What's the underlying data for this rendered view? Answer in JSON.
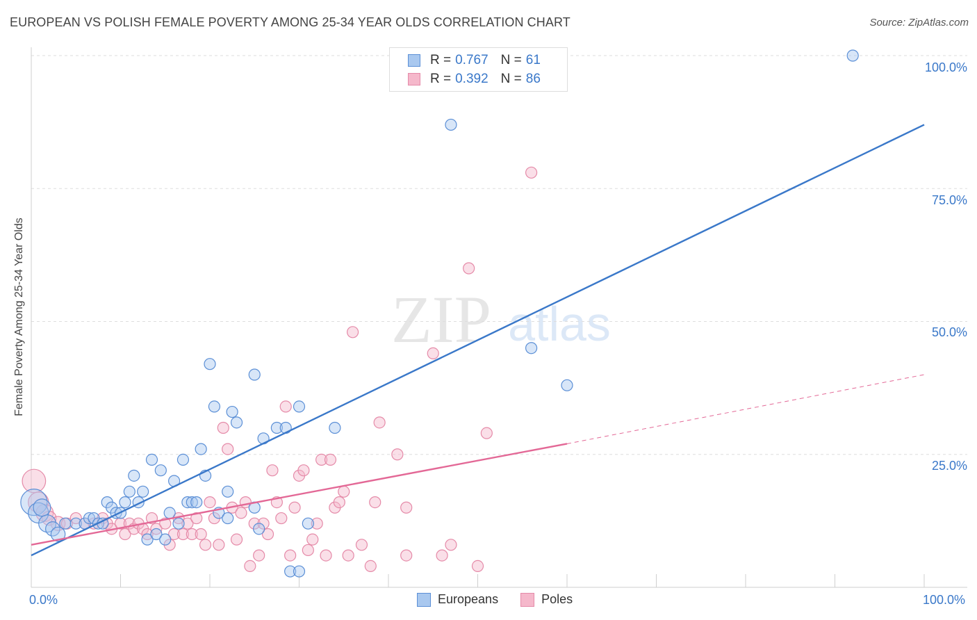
{
  "title": "EUROPEAN VS POLISH FEMALE POVERTY AMONG 25-34 YEAR OLDS CORRELATION CHART",
  "source": "Source: ZipAtlas.com",
  "watermark": {
    "zip": "ZIP",
    "atlas": "atlas"
  },
  "legend_top": {
    "rows": [
      {
        "r_label": "R =",
        "r_value": "0.767",
        "n_label": "N =",
        "n_value": "61"
      },
      {
        "r_label": "R =",
        "r_value": "0.392",
        "n_label": "N =",
        "n_value": "86"
      }
    ]
  },
  "colors": {
    "europeans_fill": "#a9c8ef",
    "europeans_stroke": "#5b8fd6",
    "europeans_line": "#3a78c9",
    "poles_fill": "#f5b8cb",
    "poles_stroke": "#e58aa8",
    "poles_line": "#e36896",
    "axis_text": "#3a78c9",
    "grid": "#dddddd"
  },
  "chart_data": {
    "type": "scatter",
    "ylabel": "Female Poverty Among 25-34 Year Olds",
    "xlim": [
      0,
      100
    ],
    "ylim": [
      0,
      100
    ],
    "x_tick_labels": [
      "0.0%",
      "100.0%"
    ],
    "y_tick_labels": [
      "25.0%",
      "50.0%",
      "75.0%",
      "100.0%"
    ],
    "y_ticks": [
      25,
      50,
      75,
      100
    ],
    "grid": "horizontal-dashed",
    "legend_placement": "top-center and bottom",
    "series": [
      {
        "name": "Europeans",
        "trend": {
          "x0": 0,
          "y0": 6,
          "x1": 100,
          "y1": 87,
          "dashed_after": null
        },
        "points": [
          [
            0.3,
            16,
            7
          ],
          [
            0.8,
            14,
            5
          ],
          [
            1.2,
            15,
            4
          ],
          [
            1.8,
            12,
            4
          ],
          [
            2.4,
            11,
            3
          ],
          [
            3.0,
            10,
            3
          ],
          [
            3.8,
            12,
            2
          ],
          [
            5,
            12,
            2
          ],
          [
            6,
            12,
            2
          ],
          [
            6.5,
            13,
            2
          ],
          [
            7,
            13,
            2
          ],
          [
            7.5,
            12,
            2
          ],
          [
            8,
            12,
            2
          ],
          [
            8.5,
            16,
            2
          ],
          [
            9,
            15,
            2
          ],
          [
            9.5,
            14,
            2
          ],
          [
            10,
            14,
            2
          ],
          [
            10.5,
            16,
            2
          ],
          [
            11,
            18,
            2
          ],
          [
            11.5,
            21,
            2
          ],
          [
            12,
            16,
            2
          ],
          [
            12.5,
            18,
            2
          ],
          [
            13,
            9,
            2
          ],
          [
            13.5,
            24,
            2
          ],
          [
            14,
            10,
            2
          ],
          [
            14.5,
            22,
            2
          ],
          [
            15,
            9,
            2
          ],
          [
            15.5,
            14,
            2
          ],
          [
            16,
            20,
            2
          ],
          [
            16.5,
            12,
            2
          ],
          [
            17,
            24,
            2
          ],
          [
            17.5,
            16,
            2
          ],
          [
            18,
            16,
            2
          ],
          [
            18.5,
            16,
            2
          ],
          [
            19,
            26,
            2
          ],
          [
            19.5,
            21,
            2
          ],
          [
            20,
            42,
            2
          ],
          [
            20.5,
            34,
            2
          ],
          [
            21,
            14,
            2
          ],
          [
            22,
            13,
            2
          ],
          [
            22,
            18,
            2
          ],
          [
            22.5,
            33,
            2
          ],
          [
            23,
            31,
            2
          ],
          [
            25,
            15,
            2
          ],
          [
            25,
            40,
            2
          ],
          [
            25.5,
            11,
            2
          ],
          [
            26,
            28,
            2
          ],
          [
            27.5,
            30,
            2
          ],
          [
            28.5,
            30,
            2
          ],
          [
            29,
            3,
            2
          ],
          [
            30,
            3,
            2
          ],
          [
            30,
            34,
            2
          ],
          [
            31,
            12,
            2
          ],
          [
            34,
            30,
            2
          ],
          [
            47,
            87,
            2
          ],
          [
            56,
            45,
            2
          ],
          [
            60,
            38,
            2
          ],
          [
            92,
            100,
            2
          ]
        ]
      },
      {
        "name": "Poles",
        "trend": {
          "x0": 0,
          "y0": 8,
          "x1": 60,
          "y1": 27,
          "dash_x1": 100,
          "dash_y1": 40
        },
        "points": [
          [
            0.3,
            20,
            6
          ],
          [
            0.8,
            16,
            5
          ],
          [
            1.5,
            14,
            4
          ],
          [
            2,
            13,
            3
          ],
          [
            3,
            12,
            3
          ],
          [
            4,
            12,
            2
          ],
          [
            5,
            13,
            2
          ],
          [
            6,
            12,
            2
          ],
          [
            7,
            12,
            2
          ],
          [
            8,
            13,
            2
          ],
          [
            8.5,
            12,
            2
          ],
          [
            9,
            11,
            2
          ],
          [
            10,
            12,
            2
          ],
          [
            10.5,
            10,
            2
          ],
          [
            11,
            12,
            2
          ],
          [
            11.5,
            11,
            2
          ],
          [
            12,
            12,
            2
          ],
          [
            12.5,
            11,
            2
          ],
          [
            13,
            10,
            2
          ],
          [
            13.5,
            13,
            2
          ],
          [
            14,
            11,
            2
          ],
          [
            15,
            12,
            2
          ],
          [
            15.5,
            8,
            2
          ],
          [
            16,
            10,
            2
          ],
          [
            16.5,
            13,
            2
          ],
          [
            17,
            10,
            2
          ],
          [
            17.5,
            12,
            2
          ],
          [
            18,
            10,
            2
          ],
          [
            18.5,
            13,
            2
          ],
          [
            19,
            10,
            2
          ],
          [
            19.5,
            8,
            2
          ],
          [
            20,
            16,
            2
          ],
          [
            20.5,
            13,
            2
          ],
          [
            21,
            8,
            2
          ],
          [
            21.5,
            30,
            2
          ],
          [
            22,
            26,
            2
          ],
          [
            22.5,
            15,
            2
          ],
          [
            23,
            9,
            2
          ],
          [
            23.5,
            14,
            2
          ],
          [
            24,
            16,
            2
          ],
          [
            24.5,
            4,
            2
          ],
          [
            25,
            12,
            2
          ],
          [
            25.5,
            6,
            2
          ],
          [
            26,
            12,
            2
          ],
          [
            26.5,
            10,
            2
          ],
          [
            27,
            22,
            2
          ],
          [
            27.5,
            16,
            2
          ],
          [
            28,
            13,
            2
          ],
          [
            28.5,
            34,
            2
          ],
          [
            29,
            6,
            2
          ],
          [
            29.5,
            15,
            2
          ],
          [
            30,
            21,
            2
          ],
          [
            30.5,
            22,
            2
          ],
          [
            31,
            7,
            2
          ],
          [
            31.5,
            9,
            2
          ],
          [
            32,
            12,
            2
          ],
          [
            32.5,
            24,
            2
          ],
          [
            33,
            6,
            2
          ],
          [
            33.5,
            24,
            2
          ],
          [
            34,
            15,
            2
          ],
          [
            34.5,
            16,
            2
          ],
          [
            35,
            18,
            2
          ],
          [
            35.5,
            6,
            2
          ],
          [
            36,
            48,
            2
          ],
          [
            37,
            8,
            2
          ],
          [
            38,
            4,
            2
          ],
          [
            38.5,
            16,
            2
          ],
          [
            39,
            31,
            2
          ],
          [
            41,
            25,
            2
          ],
          [
            42,
            6,
            2
          ],
          [
            42,
            15,
            2
          ],
          [
            45,
            44,
            2
          ],
          [
            46,
            6,
            2
          ],
          [
            47,
            8,
            2
          ],
          [
            49,
            60,
            2
          ],
          [
            50,
            4,
            2
          ],
          [
            51,
            29,
            2
          ],
          [
            56,
            78,
            2
          ]
        ]
      }
    ]
  },
  "legend_bottom": {
    "items": [
      "Europeans",
      "Poles"
    ]
  }
}
